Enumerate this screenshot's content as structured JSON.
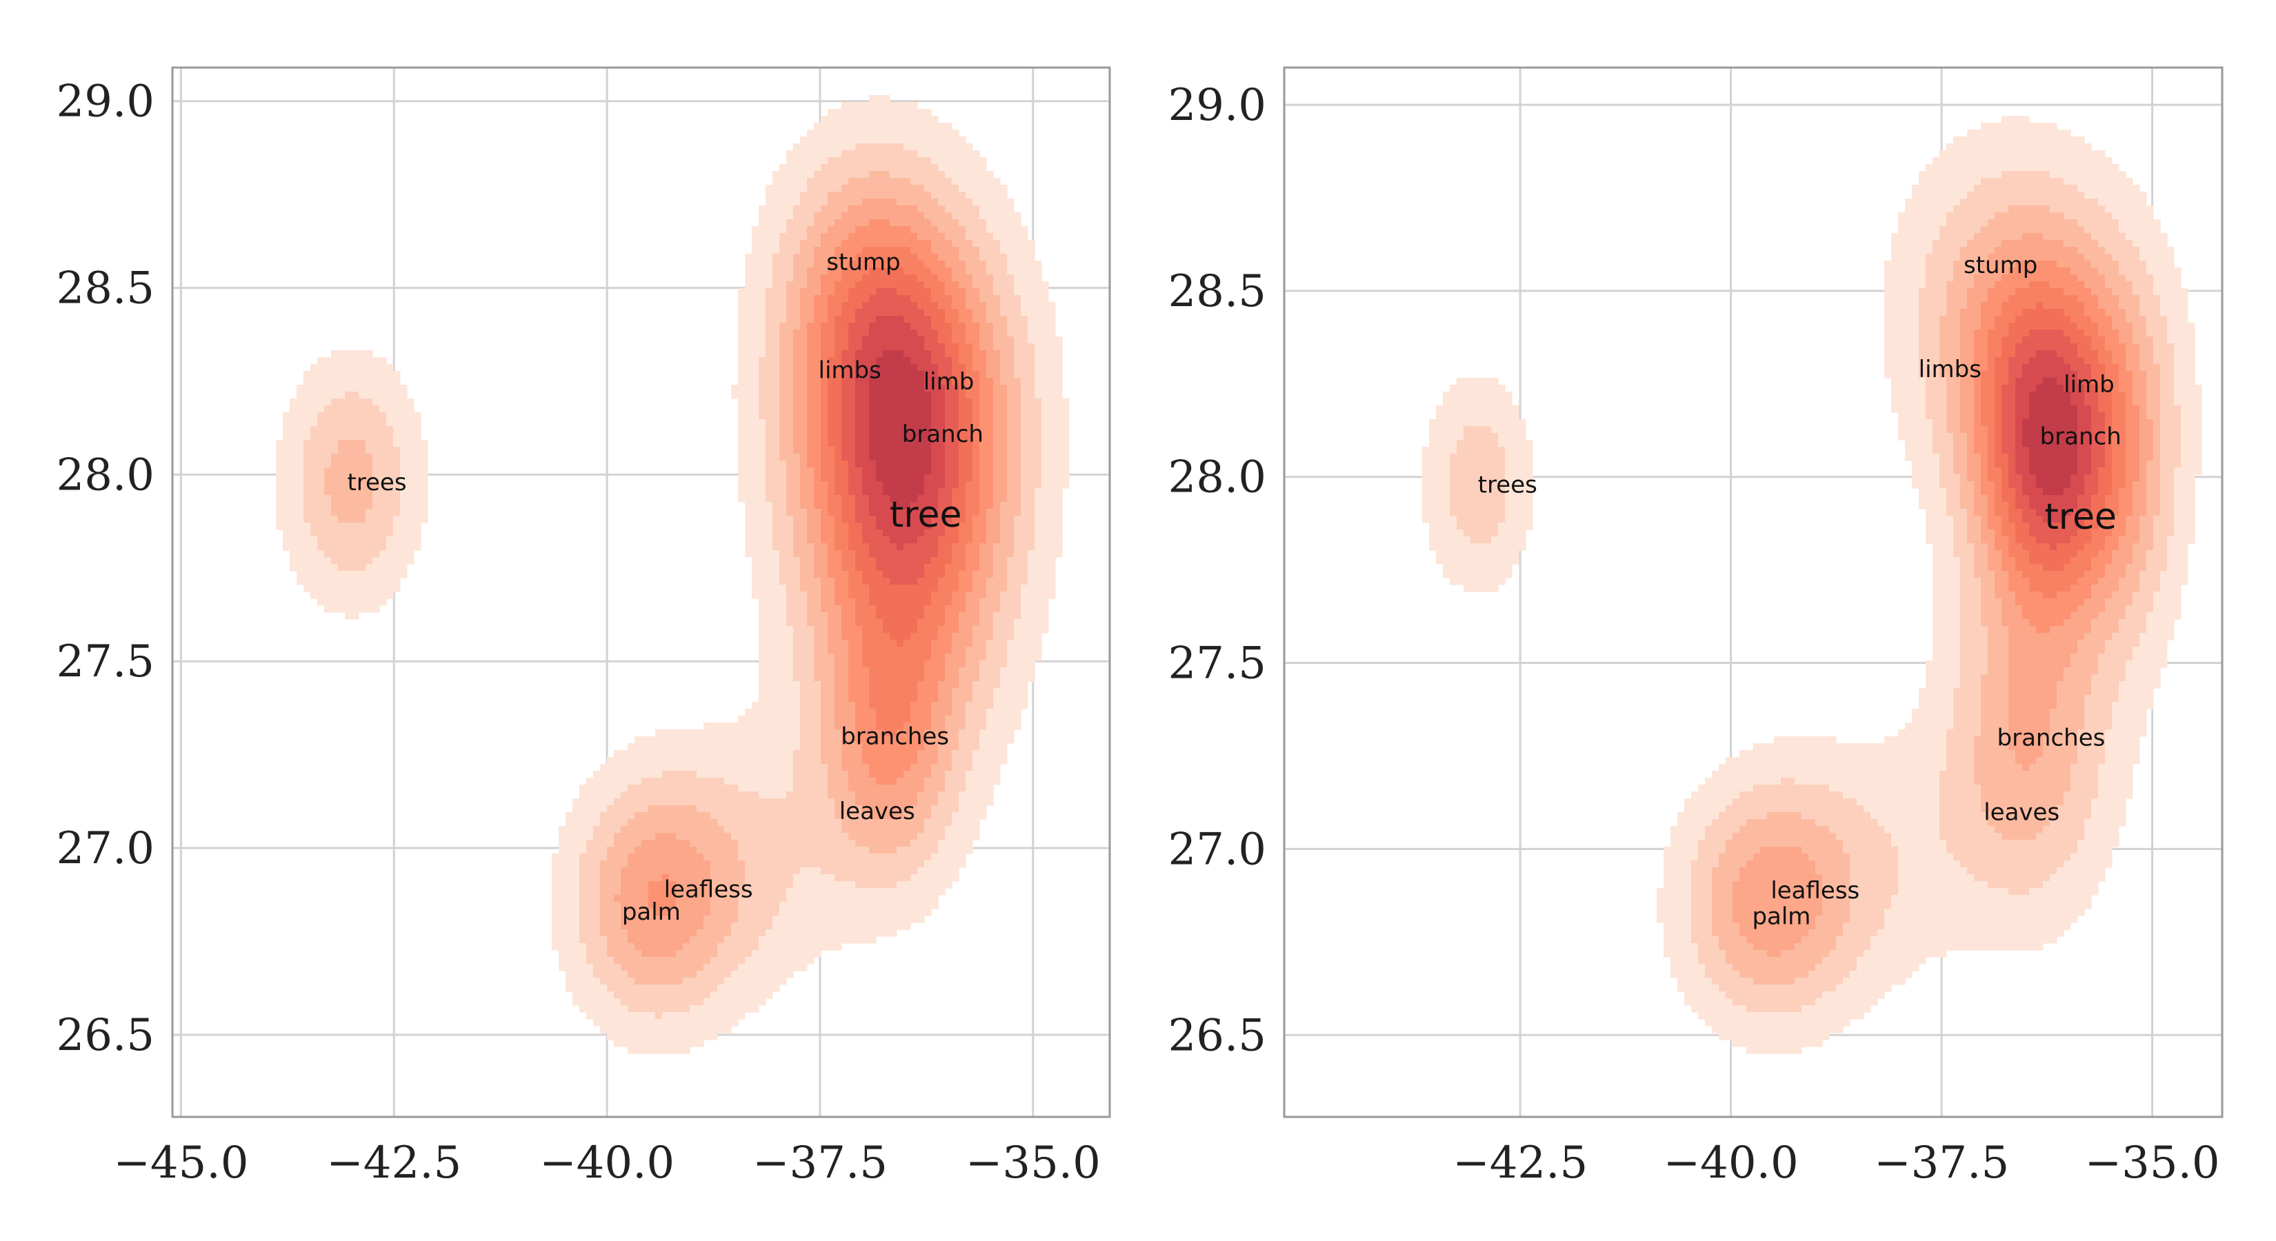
{
  "chart_data": [
    {
      "type": "contour",
      "xlim": [
        -45.1,
        -34.1
      ],
      "ylim": [
        26.28,
        29.09
      ],
      "xticks": [
        -45.0,
        -42.5,
        -40.0,
        -37.5,
        -35.0
      ],
      "xtick_labels": [
        "−45.0",
        "−42.5",
        "−40.0",
        "−37.5",
        "−35.0"
      ],
      "yticks": [
        26.5,
        27.0,
        27.5,
        28.0,
        28.5,
        29.0
      ],
      "ytick_labels": [
        "26.5",
        "27.0",
        "27.5",
        "28.0",
        "28.5",
        "29.0"
      ],
      "grid": true,
      "colormap": "reds",
      "levels": 10,
      "words": [
        {
          "text": "stump",
          "x": -36.99,
          "y": 28.57
        },
        {
          "text": "limbs",
          "x": -37.15,
          "y": 28.28
        },
        {
          "text": "limb",
          "x": -35.99,
          "y": 28.25
        },
        {
          "text": "branch",
          "x": -36.06,
          "y": 28.11
        },
        {
          "text": "trees",
          "x": -42.7,
          "y": 27.98
        },
        {
          "text": "tree",
          "x": -36.26,
          "y": 27.89
        },
        {
          "text": "branches",
          "x": -36.62,
          "y": 27.3
        },
        {
          "text": "leaves",
          "x": -36.83,
          "y": 27.1
        },
        {
          "text": "leafless",
          "x": -38.81,
          "y": 26.89
        },
        {
          "text": "palm",
          "x": -39.48,
          "y": 26.83
        }
      ],
      "density_components": [
        {
          "x": -36.5,
          "y": 27.95,
          "sx": 0.85,
          "sy": 0.42,
          "w": 1.0
        },
        {
          "x": -36.6,
          "y": 28.25,
          "sx": 0.9,
          "sy": 0.3,
          "w": 0.45
        },
        {
          "x": -37.0,
          "y": 28.55,
          "sx": 0.7,
          "sy": 0.25,
          "w": 0.3
        },
        {
          "x": -36.7,
          "y": 27.25,
          "sx": 0.55,
          "sy": 0.25,
          "w": 0.45
        },
        {
          "x": -39.5,
          "y": 26.85,
          "sx": 0.65,
          "sy": 0.22,
          "w": 0.5
        },
        {
          "x": -38.5,
          "y": 26.95,
          "sx": 0.9,
          "sy": 0.25,
          "w": 0.25
        },
        {
          "x": -43.0,
          "y": 27.98,
          "sx": 0.55,
          "sy": 0.22,
          "w": 0.42
        }
      ]
    },
    {
      "type": "contour",
      "xlim": [
        -45.3,
        -34.17
      ],
      "ylim": [
        26.28,
        29.1
      ],
      "xticks": [
        -42.5,
        -40.0,
        -37.5,
        -35.0
      ],
      "xtick_labels": [
        "−42.5",
        "−40.0",
        "−37.5",
        "−35.0"
      ],
      "yticks": [
        26.5,
        27.0,
        27.5,
        28.0,
        28.5,
        29.0
      ],
      "ytick_labels": [
        "26.5",
        "27.0",
        "27.5",
        "28.0",
        "28.5",
        "29.0"
      ],
      "grid": true,
      "colormap": "reds",
      "levels": 10,
      "words": [
        {
          "text": "stump",
          "x": -36.8,
          "y": 28.57
        },
        {
          "text": "limbs",
          "x": -37.4,
          "y": 28.29
        },
        {
          "text": "limb",
          "x": -35.75,
          "y": 28.25
        },
        {
          "text": "branch",
          "x": -35.85,
          "y": 28.11
        },
        {
          "text": "trees",
          "x": -42.65,
          "y": 27.98
        },
        {
          "text": "tree",
          "x": -35.85,
          "y": 27.89
        },
        {
          "text": "branches",
          "x": -36.2,
          "y": 27.3
        },
        {
          "text": "leaves",
          "x": -36.55,
          "y": 27.1
        },
        {
          "text": "leafless",
          "x": -39.0,
          "y": 26.89
        },
        {
          "text": "palm",
          "x": -39.4,
          "y": 26.82
        }
      ],
      "density_components": [
        {
          "x": -36.2,
          "y": 28.02,
          "sx": 0.6,
          "sy": 0.3,
          "w": 1.0
        },
        {
          "x": -36.3,
          "y": 28.3,
          "sx": 0.9,
          "sy": 0.3,
          "w": 0.35
        },
        {
          "x": -36.8,
          "y": 28.5,
          "sx": 0.9,
          "sy": 0.3,
          "w": 0.25
        },
        {
          "x": -36.5,
          "y": 27.25,
          "sx": 0.7,
          "sy": 0.3,
          "w": 0.45
        },
        {
          "x": -39.6,
          "y": 26.85,
          "sx": 0.7,
          "sy": 0.22,
          "w": 0.5
        },
        {
          "x": -38.5,
          "y": 26.95,
          "sx": 0.9,
          "sy": 0.25,
          "w": 0.2
        },
        {
          "x": -43.0,
          "y": 27.98,
          "sx": 0.45,
          "sy": 0.2,
          "w": 0.32
        },
        {
          "x": -35.2,
          "y": 28.0,
          "sx": 0.45,
          "sy": 0.35,
          "w": 0.25
        }
      ]
    }
  ]
}
